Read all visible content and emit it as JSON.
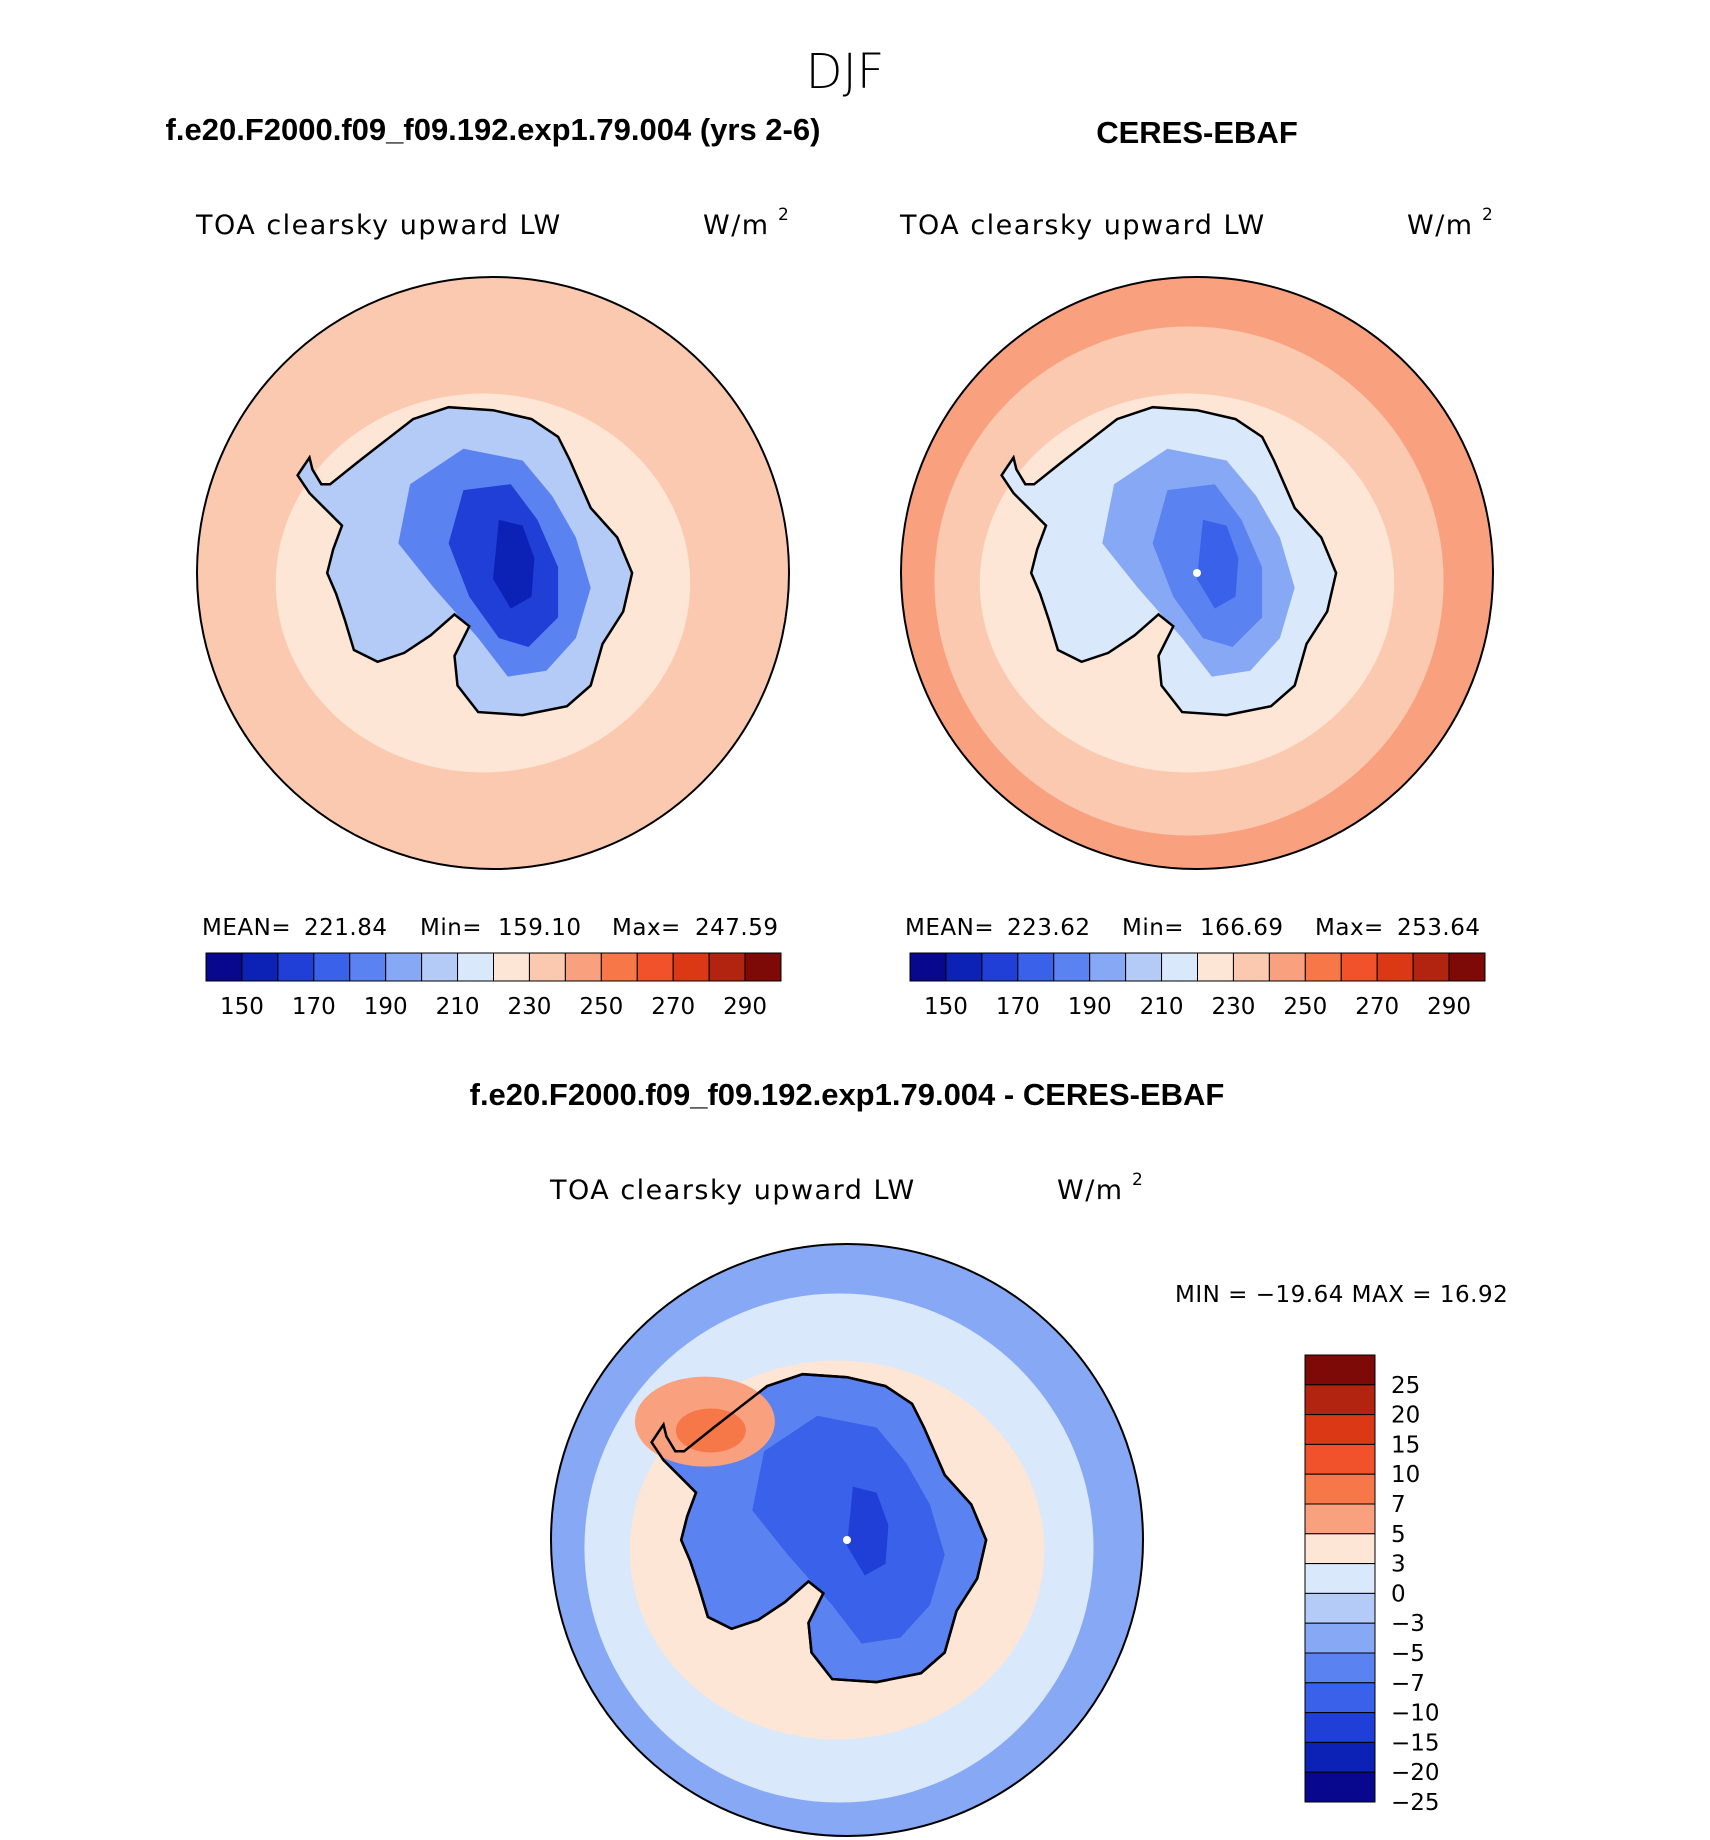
{
  "title": "DJF",
  "colors": {
    "abs": [
      "#08088f",
      "#0c22b6",
      "#1f3fd6",
      "#3a61ea",
      "#5a82f0",
      "#87a8f4",
      "#b4cbf8",
      "#d9e8fb",
      "#fde6d6",
      "#fbc9b0",
      "#f9a17e",
      "#f67849",
      "#f1522b",
      "#db3816",
      "#b22310",
      "#7d0a07"
    ],
    "diff": [
      "#7d0a07",
      "#b22310",
      "#db3816",
      "#f1522b",
      "#f67849",
      "#f9a17e",
      "#fde6d6",
      "#d9e8fb",
      "#b4cbf8",
      "#87a8f4",
      "#5a82f0",
      "#3a61ea",
      "#1f3fd6",
      "#0c22b6",
      "#08088f"
    ],
    "coast": "#000000"
  },
  "panels": {
    "model": {
      "header": "f.e20.F2000.f09_f09.192.exp1.79.004 (yrs 2-6)",
      "variable": "TOA clearsky upward LW",
      "units": "W/m",
      "units_sup": "2",
      "mean_label": "MEAN=",
      "mean": "221.84",
      "min_label": "Min=",
      "min": "159.10",
      "max_label": "Max=",
      "max": "247.59"
    },
    "obs": {
      "header": "CERES-EBAF",
      "variable": "TOA clearsky upward LW",
      "units": "W/m",
      "units_sup": "2",
      "mean_label": "MEAN=",
      "mean": "223.62",
      "min_label": "Min=",
      "min": "166.69",
      "max_label": "Max=",
      "max": "253.64"
    },
    "diff": {
      "header": "f.e20.F2000.f09_f09.192.exp1.79.004 - CERES-EBAF",
      "variable": "TOA clearsky upward LW",
      "units": "W/m",
      "units_sup": "2",
      "minmax_text": "MIN = −19.64 MAX =   16.92"
    }
  },
  "chart_data": [
    {
      "type": "heatmap",
      "projection": "south polar stereographic",
      "title": "TOA clearsky upward LW",
      "units": "W/m²",
      "stats": {
        "mean": 221.84,
        "min": 159.1,
        "max": 247.59
      },
      "colorbar": {
        "orientation": "horizontal",
        "levels": [
          150,
          160,
          170,
          180,
          190,
          200,
          210,
          220,
          230,
          240,
          250,
          260,
          270,
          280,
          290
        ],
        "tick_labels": [
          "150",
          "170",
          "190",
          "210",
          "230",
          "250",
          "270",
          "290"
        ]
      },
      "fields": {
        "antarctic_interior": 160,
        "coastal_antarctica": 205,
        "ocean_near_ice": 222,
        "ocean_outer": 236
      }
    },
    {
      "type": "heatmap",
      "projection": "south polar stereographic",
      "title": "TOA clearsky upward LW",
      "units": "W/m²",
      "stats": {
        "mean": 223.62,
        "min": 166.69,
        "max": 253.64
      },
      "colorbar": {
        "orientation": "horizontal",
        "levels": [
          150,
          160,
          170,
          180,
          190,
          200,
          210,
          220,
          230,
          240,
          250,
          260,
          270,
          280,
          290
        ],
        "tick_labels": [
          "150",
          "170",
          "190",
          "210",
          "230",
          "250",
          "270",
          "290"
        ]
      },
      "fields": {
        "antarctic_interior": 170,
        "coastal_antarctica": 208,
        "ocean_near_ice": 225,
        "ocean_outer": 242
      }
    },
    {
      "type": "heatmap",
      "projection": "south polar stereographic",
      "title": "TOA clearsky upward LW",
      "units": "W/m²",
      "stats": {
        "min": -19.64,
        "max": 16.92
      },
      "colorbar": {
        "orientation": "vertical",
        "levels": [
          25,
          20,
          15,
          10,
          7,
          5,
          3,
          0,
          -3,
          -5,
          -7,
          -10,
          -15,
          -20,
          -25
        ],
        "tick_labels": [
          "25",
          "20",
          "15",
          "10",
          "7",
          "5",
          "3",
          "0",
          "−3",
          "−5",
          "−7",
          "−10",
          "−15",
          "−20",
          "−25"
        ]
      },
      "fields": {
        "antarctic_interior": -12,
        "weddell_sector": 6,
        "ocean_near_ice": 1,
        "ocean_outer": -4
      }
    }
  ]
}
